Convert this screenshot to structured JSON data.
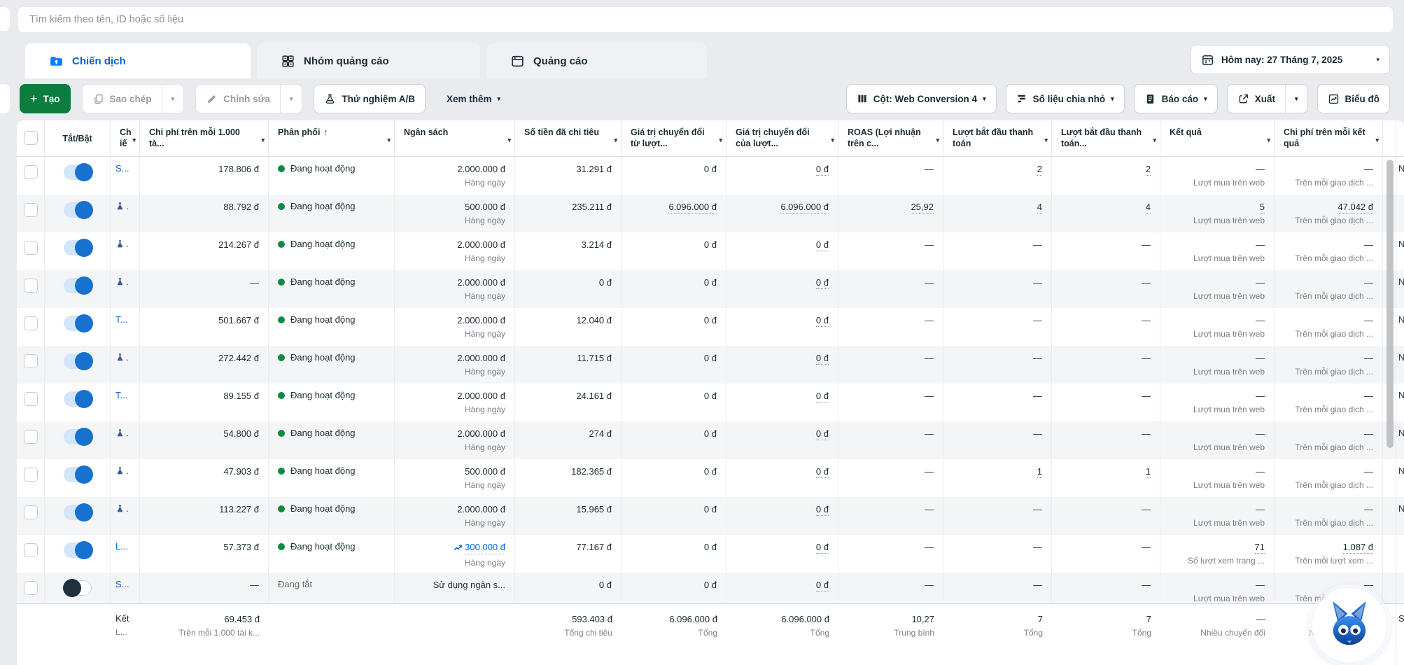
{
  "search": {
    "placeholder": "Tìm kiếm theo tên, ID hoặc số liệu"
  },
  "tabs": [
    {
      "label": "Chiến dịch",
      "active": true
    },
    {
      "label": "Nhóm quảng cáo",
      "active": false
    },
    {
      "label": "Quảng cáo",
      "active": false
    }
  ],
  "date_filter": {
    "label": "Hôm nay: 27 Tháng 7, 2025"
  },
  "toolbar": {
    "create": "Tạo",
    "duplicate": "Sao chép",
    "edit": "Chỉnh sửa",
    "ab_test": "Thử nghiệm A/B",
    "more": "Xem thêm",
    "columns": "Cột: Web Conversion 4",
    "breakdown": "Số liệu chia nhỏ",
    "report": "Báo cáo",
    "export": "Xuất",
    "chart": "Biểu đồ"
  },
  "icons": {
    "caret": "▾",
    "sort_up": "↑",
    "plus": "+"
  },
  "colors": {
    "accent_green": "#0c7c3f",
    "link_blue": "#0064d1",
    "status_green": "#0e8a43",
    "toggle_blue": "#1771ce"
  },
  "table": {
    "headers": {
      "toggle": "Tắt/Bật",
      "name": "Chiến dịch",
      "cp1000": "Chi phí trên mỗi 1.000 tà...",
      "delivery": "Phân phối",
      "budget": "Ngân sách",
      "spent": "Số tiền đã chi tiêu",
      "conv_from": "Giá trị chuyển đổi từ lượt...",
      "conv_of": "Giá trị chuyển đổi của lượt...",
      "roas": "ROAS (Lợi nhuận trên c...",
      "checkout1": "Lượt bắt đầu thanh toán",
      "checkout2": "Lượt bắt đầu thanh toán...",
      "result": "Kết quả",
      "cpr": "Chi phí trên mỗi kết quả"
    },
    "status_labels": {
      "active": "Đang hoạt động",
      "off": "Đang tắt"
    },
    "rows": [
      {
        "name": "S...",
        "flask": false,
        "on": true,
        "cp1000": "178.806 đ",
        "status": "active",
        "delivery": "Đang hoạt động",
        "budget": "2.000.000 đ",
        "budget_sub": "Hàng ngày",
        "budget_link": false,
        "spent": "31.291 đ",
        "conv_from": "0 đ",
        "conv_from_u": false,
        "conv_of": "0 đ",
        "roas": "—",
        "checkout1": "2",
        "checkout2": "2",
        "result": "—",
        "result_sub": "Lượt mua trên web",
        "cpr": "—",
        "cpr_sub": "Trên mỗi giao dịch ...",
        "edge": "N"
      },
      {
        "name": ".",
        "flask": true,
        "on": true,
        "cp1000": "88.792 đ",
        "status": "active",
        "delivery": "Đang hoạt động",
        "budget": "500.000 đ",
        "budget_sub": "Hàng ngày",
        "budget_link": false,
        "spent": "235.211 đ",
        "conv_from": "6.096.000 đ",
        "conv_from_u": true,
        "conv_of": "6.096.000 đ",
        "roas": "25,92",
        "checkout1": "4",
        "checkout2": "4",
        "result": "5",
        "result_sub": "Lượt mua trên web",
        "cpr": "47.042 đ",
        "cpr_sub": "Trên mỗi giao dịch ...",
        "edge": ""
      },
      {
        "name": ".",
        "flask": true,
        "on": true,
        "cp1000": "214.267 đ",
        "status": "active",
        "delivery": "Đang hoạt động",
        "budget": "2.000.000 đ",
        "budget_sub": "Hàng ngày",
        "budget_link": false,
        "spent": "3.214 đ",
        "conv_from": "0 đ",
        "conv_from_u": false,
        "conv_of": "0 đ",
        "roas": "—",
        "checkout1": "—",
        "checkout2": "—",
        "result": "—",
        "result_sub": "Lượt mua trên web",
        "cpr": "—",
        "cpr_sub": "Trên mỗi giao dịch ...",
        "edge": "N"
      },
      {
        "name": ".",
        "flask": true,
        "on": true,
        "cp1000": "—",
        "status": "active",
        "delivery": "Đang hoạt động",
        "budget": "2.000.000 đ",
        "budget_sub": "Hàng ngày",
        "budget_link": false,
        "spent": "0 đ",
        "conv_from": "0 đ",
        "conv_from_u": false,
        "conv_of": "0 đ",
        "roas": "—",
        "checkout1": "—",
        "checkout2": "—",
        "result": "—",
        "result_sub": "Lượt mua trên web",
        "cpr": "—",
        "cpr_sub": "Trên mỗi giao dịch ...",
        "edge": "N"
      },
      {
        "name": "T...",
        "flask": false,
        "on": true,
        "cp1000": "501.667 đ",
        "status": "active",
        "delivery": "Đang hoạt động",
        "budget": "2.000.000 đ",
        "budget_sub": "Hàng ngày",
        "budget_link": false,
        "spent": "12.040 đ",
        "conv_from": "0 đ",
        "conv_from_u": false,
        "conv_of": "0 đ",
        "roas": "—",
        "checkout1": "—",
        "checkout2": "—",
        "result": "—",
        "result_sub": "Lượt mua trên web",
        "cpr": "—",
        "cpr_sub": "Trên mỗi giao dịch ...",
        "edge": "N"
      },
      {
        "name": ".",
        "flask": true,
        "on": true,
        "cp1000": "272.442 đ",
        "status": "active",
        "delivery": "Đang hoạt động",
        "budget": "2.000.000 đ",
        "budget_sub": "Hàng ngày",
        "budget_link": false,
        "spent": "11.715 đ",
        "conv_from": "0 đ",
        "conv_from_u": false,
        "conv_of": "0 đ",
        "roas": "—",
        "checkout1": "—",
        "checkout2": "—",
        "result": "—",
        "result_sub": "Lượt mua trên web",
        "cpr": "—",
        "cpr_sub": "Trên mỗi giao dịch ...",
        "edge": "N"
      },
      {
        "name": "T...",
        "flask": false,
        "on": true,
        "cp1000": "89.155 đ",
        "status": "active",
        "delivery": "Đang hoạt động",
        "budget": "2.000.000 đ",
        "budget_sub": "Hàng ngày",
        "budget_link": false,
        "spent": "24.161 đ",
        "conv_from": "0 đ",
        "conv_from_u": false,
        "conv_of": "0 đ",
        "roas": "—",
        "checkout1": "—",
        "checkout2": "—",
        "result": "—",
        "result_sub": "Lượt mua trên web",
        "cpr": "—",
        "cpr_sub": "Trên mỗi giao dịch ...",
        "edge": "N"
      },
      {
        "name": ".",
        "flask": true,
        "on": true,
        "cp1000": "54.800 đ",
        "status": "active",
        "delivery": "Đang hoạt động",
        "budget": "2.000.000 đ",
        "budget_sub": "Hàng ngày",
        "budget_link": false,
        "spent": "274 đ",
        "conv_from": "0 đ",
        "conv_from_u": false,
        "conv_of": "0 đ",
        "roas": "—",
        "checkout1": "—",
        "checkout2": "—",
        "result": "—",
        "result_sub": "Lượt mua trên web",
        "cpr": "—",
        "cpr_sub": "Trên mỗi giao dịch ...",
        "edge": "N"
      },
      {
        "name": ".",
        "flask": true,
        "on": true,
        "cp1000": "47.903 đ",
        "status": "active",
        "delivery": "Đang hoạt động",
        "budget": "500.000 đ",
        "budget_sub": "Hàng ngày",
        "budget_link": false,
        "spent": "182.365 đ",
        "conv_from": "0 đ",
        "conv_from_u": false,
        "conv_of": "0 đ",
        "roas": "—",
        "checkout1": "1",
        "checkout2": "1",
        "result": "—",
        "result_sub": "Lượt mua trên web",
        "cpr": "—",
        "cpr_sub": "Trên mỗi giao dịch ...",
        "edge": "N"
      },
      {
        "name": ".",
        "flask": true,
        "on": true,
        "cp1000": "113.227 đ",
        "status": "active",
        "delivery": "Đang hoạt động",
        "budget": "2.000.000 đ",
        "budget_sub": "Hàng ngày",
        "budget_link": false,
        "spent": "15.965 đ",
        "conv_from": "0 đ",
        "conv_from_u": false,
        "conv_of": "0 đ",
        "roas": "—",
        "checkout1": "—",
        "checkout2": "—",
        "result": "—",
        "result_sub": "Lượt mua trên web",
        "cpr": "—",
        "cpr_sub": "Trên mỗi giao dịch ...",
        "edge": "N"
      },
      {
        "name": "L...",
        "flask": false,
        "on": true,
        "cp1000": "57.373 đ",
        "status": "active",
        "delivery": "Đang hoạt động",
        "budget": "300.000 đ",
        "budget_sub": "Hàng ngày",
        "budget_link": true,
        "spent": "77.167 đ",
        "conv_from": "0 đ",
        "conv_from_u": false,
        "conv_of": "0 đ",
        "roas": "—",
        "checkout1": "—",
        "checkout2": "—",
        "result": "71",
        "result_sub": "Số lượt xem trang ...",
        "cpr": "1.087 đ",
        "cpr_sub": "Trên mỗi lượt xem ...",
        "edge": ""
      },
      {
        "name": "S...",
        "flask": false,
        "on": false,
        "cp1000": "—",
        "status": "off",
        "delivery": "Đang tắt",
        "budget": "Sử dụng ngân s...",
        "budget_sub": "",
        "budget_link": false,
        "spent": "0 đ",
        "conv_from": "0 đ",
        "conv_from_u": false,
        "conv_of": "0 đ",
        "roas": "—",
        "checkout1": "—",
        "checkout2": "—",
        "result": "—",
        "result_sub": "Lượt mua trên web",
        "cpr": "—",
        "cpr_sub": "Trên mỗi giao dịch ...",
        "edge": ""
      }
    ],
    "summary": {
      "name_line1": "Kết",
      "name_line2": "L...",
      "cp1000": "69.453 đ",
      "cp1000_sub": "Trên mỗi 1.000 tài k...",
      "spent": "593.403 đ",
      "spent_sub": "Tổng chi tiêu",
      "conv_from": "6.096.000 đ",
      "conv_from_sub": "Tổng",
      "conv_of": "6.096.000 đ",
      "conv_of_sub": "Tổng",
      "roas": "10,27",
      "roas_sub": "Trung bình",
      "checkout1": "7",
      "checkout1_sub": "Tổng",
      "checkout2": "7",
      "checkout2_sub": "Tổng",
      "result": "—",
      "result_sub": "Nhiều chuyển đổi",
      "cpr": "—",
      "cpr_sub": "Nhiều chuyển đổi",
      "edge": "S"
    }
  }
}
